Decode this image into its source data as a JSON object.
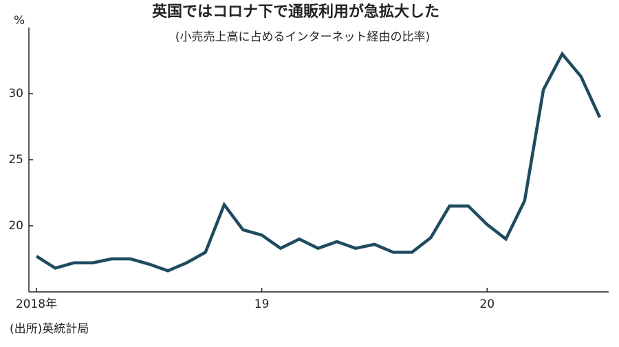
{
  "chart_data": {
    "type": "line",
    "title": "英国ではコロナ下で通販利用が急拡大した",
    "subtitle": "(小売売上高に占めるインターネット経由の比率)",
    "y_label": "%",
    "source": "(出所)英統計局",
    "categories": [
      "2018年",
      null,
      null,
      null,
      null,
      null,
      null,
      null,
      null,
      null,
      null,
      null,
      "19",
      null,
      null,
      null,
      null,
      null,
      null,
      null,
      null,
      null,
      null,
      null,
      "20",
      null,
      null,
      null,
      null,
      null,
      null
    ],
    "values": [
      17.7,
      16.8,
      17.2,
      17.2,
      17.5,
      17.5,
      17.1,
      16.6,
      17.2,
      18.0,
      21.6,
      19.7,
      19.3,
      18.3,
      19.0,
      18.3,
      18.8,
      18.3,
      18.6,
      18.0,
      18.0,
      19.1,
      21.5,
      21.5,
      20.1,
      19.0,
      21.9,
      30.3,
      33.0,
      31.3,
      28.2
    ],
    "color": "#1f4b5f",
    "ylim": [
      15,
      35
    ],
    "yticks": [
      20,
      25,
      30
    ],
    "grid": false
  }
}
